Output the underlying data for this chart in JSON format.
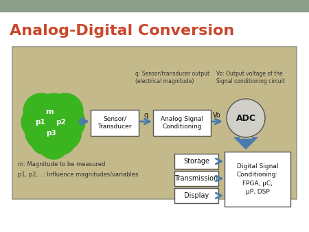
{
  "title": "Analog-Digital Conversion",
  "title_color": "#c9472b",
  "title_fontsize": 16,
  "bg_color": "#f2f2f2",
  "header_color": "#8a9e8a",
  "diagram_bg": "#c4b98a",
  "diagram_border": "#999988",
  "blob_color": "#3ab520",
  "sensor_label": "Sensor/\nTransducer",
  "analog_label": "Analog Signal\nConditioning",
  "adc_label": "ADC",
  "storage_label": "Storage",
  "transmission_label": "Transmission",
  "display_label": "Display",
  "dsp_label": "Digital Signal\nConditioning:\nFPGA, μC,\nμP, DSP",
  "q_label": "q",
  "vo_label": "Vo",
  "annot1": "q: Sensor/transducer output\n(electrical magnitude)",
  "annot2": "Vo: Output voltage of the\nSignal conditioning circuit",
  "note1": "m: Magnitude to be measured",
  "note2": "p1, p2,...: Influence magnitudes/variables",
  "arrow_color": "#4a7ab0",
  "box_fill": "#ffffff",
  "box_edge": "#555555",
  "adc_fill": "#d0cfc8",
  "text_color": "#111111",
  "note_color": "#333333"
}
